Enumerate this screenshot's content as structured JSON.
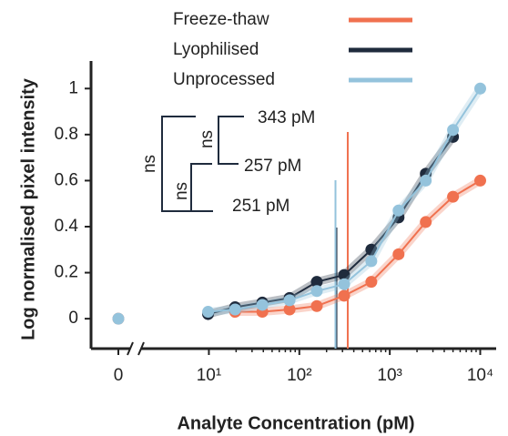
{
  "chart_data": {
    "type": "line",
    "xlabel": "Analyte Concentration (pM)",
    "ylabel": "Log normalised pixel intensity",
    "xscale": "log",
    "x": [
      0,
      9.8,
      19.5,
      39,
      78,
      156,
      313,
      625,
      1250,
      2500,
      5000,
      10000
    ],
    "series": [
      {
        "name": "Freeze-thaw",
        "color": "#f0714f",
        "values": [
          0,
          null,
          0.03,
          0.03,
          0.04,
          0.055,
          0.1,
          0.16,
          0.28,
          0.42,
          0.53,
          0.6
        ]
      },
      {
        "name": "Lyophilised",
        "color": "#1f2b3d",
        "values": [
          null,
          0.02,
          0.05,
          0.07,
          0.09,
          0.16,
          0.19,
          0.3,
          0.44,
          0.63,
          0.79,
          null
        ]
      },
      {
        "name": "Unprocessed",
        "color": "#94c3dc",
        "values": [
          0,
          0.03,
          0.04,
          0.06,
          0.08,
          0.12,
          0.15,
          0.25,
          0.47,
          0.6,
          0.82,
          1
        ]
      }
    ],
    "xlim": [
      2,
      15000
    ],
    "ylim": [
      -0.13,
      1.1
    ],
    "xticks": [
      0,
      {
        "value": 10,
        "label": "10¹"
      },
      {
        "value": 100,
        "label": "10²"
      },
      {
        "value": 1000,
        "label": "10³"
      },
      {
        "value": 10000,
        "label": "10⁴"
      }
    ],
    "yticks": [
      0,
      0.2,
      0.4,
      0.6,
      0.8,
      1
    ],
    "legend": "top",
    "lod": [
      {
        "value": 343,
        "label": "343 pM"
      },
      {
        "value": 257,
        "label": "257 pM"
      },
      {
        "value": 251,
        "label": "251 pM"
      }
    ],
    "significance": [
      "ns",
      "ns",
      "ns"
    ]
  }
}
